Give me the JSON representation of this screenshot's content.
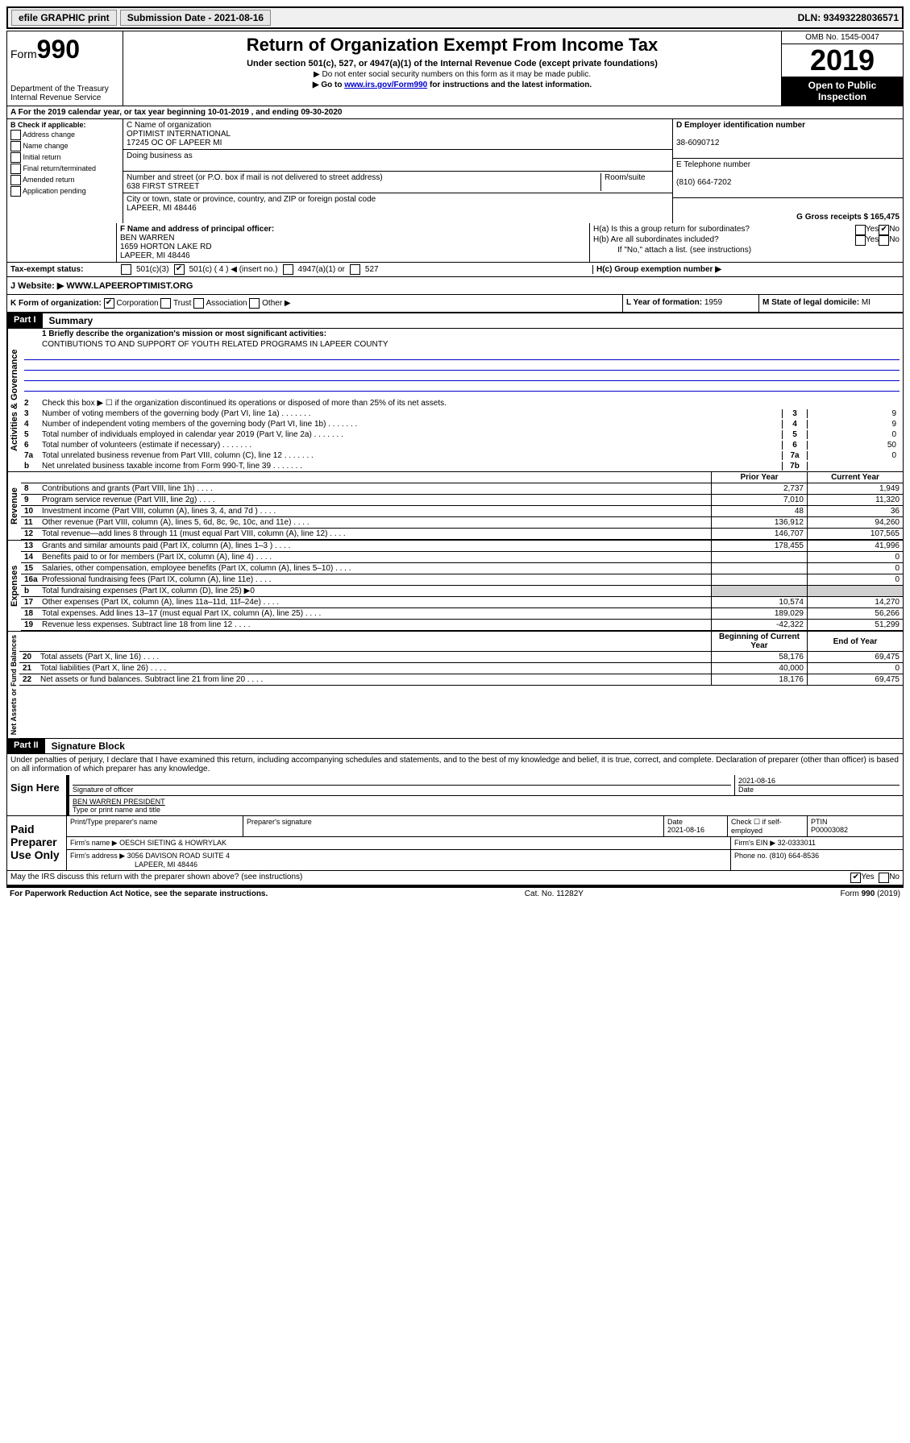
{
  "topbar": {
    "efile": "efile GRAPHIC print",
    "submission": "Submission Date - 2021-08-16",
    "dln": "DLN: 93493228036571"
  },
  "header": {
    "form_prefix": "Form",
    "form_number": "990",
    "dept": "Department of the Treasury\nInternal Revenue Service",
    "title": "Return of Organization Exempt From Income Tax",
    "subtitle": "Under section 501(c), 527, or 4947(a)(1) of the Internal Revenue Code (except private foundations)",
    "note1": "▶ Do not enter social security numbers on this form as it may be made public.",
    "note2_pre": "▶ Go to ",
    "note2_link": "www.irs.gov/Form990",
    "note2_post": " for instructions and the latest information.",
    "omb": "OMB No. 1545-0047",
    "year": "2019",
    "open": "Open to Public Inspection"
  },
  "line_a": "A For the 2019 calendar year, or tax year beginning 10-01-2019    , and ending 09-30-2020",
  "section_b": {
    "heading": "B Check if applicable:",
    "items": [
      "Address change",
      "Name change",
      "Initial return",
      "Final return/terminated",
      "Amended return",
      "Application pending"
    ]
  },
  "section_c": {
    "label": "C Name of organization",
    "name1": "OPTIMIST INTERNATIONAL",
    "name2": "17245 OC OF LAPEER MI",
    "dba_label": "Doing business as",
    "addr_label": "Number and street (or P.O. box if mail is not delivered to street address)",
    "room_label": "Room/suite",
    "addr": "638 FIRST STREET",
    "city_label": "City or town, state or province, country, and ZIP or foreign postal code",
    "city": "LAPEER, MI  48446"
  },
  "section_d": {
    "label": "D Employer identification number",
    "value": "38-6090712"
  },
  "section_e": {
    "label": "E Telephone number",
    "value": "(810) 664-7202"
  },
  "section_g": {
    "label": "G Gross receipts $ 165,475"
  },
  "section_f": {
    "label": "F  Name and address of principal officer:",
    "name": "BEN WARREN",
    "addr1": "1659 HORTON LAKE RD",
    "addr2": "LAPEER, MI  48446"
  },
  "section_h": {
    "ha": "H(a)  Is this a group return for subordinates?",
    "hb": "H(b)  Are all subordinates included?",
    "hb_note": "If \"No,\" attach a list. (see instructions)",
    "hc": "H(c)  Group exemption number ▶"
  },
  "row_i": {
    "label": "Tax-exempt status:",
    "opts": [
      "501(c)(3)",
      "501(c) ( 4 ) ◀ (insert no.)",
      "4947(a)(1) or",
      "527"
    ]
  },
  "row_j": {
    "label": "J    Website: ▶",
    "value": "WWW.LAPEEROPTIMIST.ORG"
  },
  "row_k": "K Form of organization:",
  "row_k_opts": [
    "Corporation",
    "Trust",
    "Association",
    "Other ▶"
  ],
  "row_l": {
    "label": "L Year of formation: ",
    "value": "1959"
  },
  "row_m": {
    "label": "M State of legal domicile: ",
    "value": "MI"
  },
  "part1": {
    "label": "Part I",
    "title": "Summary"
  },
  "mission": {
    "q": "1  Briefly describe the organization's mission or most significant activities:",
    "text": "CONTIBUTIONS TO AND SUPPORT OF YOUTH RELATED PROGRAMS IN LAPEER COUNTY"
  },
  "side_labels": {
    "gov": "Activities & Governance",
    "rev": "Revenue",
    "exp": "Expenses",
    "net": "Net Assets or Fund Balances"
  },
  "gov_lines": [
    {
      "n": "2",
      "t": "Check this box ▶ ☐  if the organization discontinued its operations or disposed of more than 25% of its net assets."
    },
    {
      "n": "3",
      "t": "Number of voting members of the governing body (Part VI, line 1a)",
      "box": "3",
      "v": "9"
    },
    {
      "n": "4",
      "t": "Number of independent voting members of the governing body (Part VI, line 1b)",
      "box": "4",
      "v": "9"
    },
    {
      "n": "5",
      "t": "Total number of individuals employed in calendar year 2019 (Part V, line 2a)",
      "box": "5",
      "v": "0"
    },
    {
      "n": "6",
      "t": "Total number of volunteers (estimate if necessary)",
      "box": "6",
      "v": "50"
    },
    {
      "n": "7a",
      "t": "Total unrelated business revenue from Part VIII, column (C), line 12",
      "box": "7a",
      "v": "0"
    },
    {
      "n": "b",
      "t": "Net unrelated business taxable income from Form 990-T, line 39",
      "box": "7b",
      "v": ""
    }
  ],
  "table_headers": {
    "prior": "Prior Year",
    "current": "Current Year",
    "begin": "Beginning of Current Year",
    "end": "End of Year"
  },
  "rev_lines": [
    {
      "n": "8",
      "t": "Contributions and grants (Part VIII, line 1h)",
      "p": "2,737",
      "c": "1,949"
    },
    {
      "n": "9",
      "t": "Program service revenue (Part VIII, line 2g)",
      "p": "7,010",
      "c": "11,320"
    },
    {
      "n": "10",
      "t": "Investment income (Part VIII, column (A), lines 3, 4, and 7d )",
      "p": "48",
      "c": "36"
    },
    {
      "n": "11",
      "t": "Other revenue (Part VIII, column (A), lines 5, 6d, 8c, 9c, 10c, and 11e)",
      "p": "136,912",
      "c": "94,260"
    },
    {
      "n": "12",
      "t": "Total revenue—add lines 8 through 11 (must equal Part VIII, column (A), line 12)",
      "p": "146,707",
      "c": "107,565"
    }
  ],
  "exp_lines": [
    {
      "n": "13",
      "t": "Grants and similar amounts paid (Part IX, column (A), lines 1–3 )",
      "p": "178,455",
      "c": "41,996"
    },
    {
      "n": "14",
      "t": "Benefits paid to or for members (Part IX, column (A), line 4)",
      "p": "",
      "c": "0"
    },
    {
      "n": "15",
      "t": "Salaries, other compensation, employee benefits (Part IX, column (A), lines 5–10)",
      "p": "",
      "c": "0"
    },
    {
      "n": "16a",
      "t": "Professional fundraising fees (Part IX, column (A), line 11e)",
      "p": "",
      "c": "0"
    },
    {
      "n": "b",
      "t": "Total fundraising expenses (Part IX, column (D), line 25) ▶0",
      "shade": true
    },
    {
      "n": "17",
      "t": "Other expenses (Part IX, column (A), lines 11a–11d, 11f–24e)",
      "p": "10,574",
      "c": "14,270"
    },
    {
      "n": "18",
      "t": "Total expenses. Add lines 13–17 (must equal Part IX, column (A), line 25)",
      "p": "189,029",
      "c": "56,266"
    },
    {
      "n": "19",
      "t": "Revenue less expenses. Subtract line 18 from line 12",
      "p": "-42,322",
      "c": "51,299"
    }
  ],
  "net_lines": [
    {
      "n": "20",
      "t": "Total assets (Part X, line 16)",
      "p": "58,176",
      "c": "69,475"
    },
    {
      "n": "21",
      "t": "Total liabilities (Part X, line 26)",
      "p": "40,000",
      "c": "0"
    },
    {
      "n": "22",
      "t": "Net assets or fund balances. Subtract line 21 from line 20",
      "p": "18,176",
      "c": "69,475"
    }
  ],
  "part2": {
    "label": "Part II",
    "title": "Signature Block"
  },
  "perjury": "Under penalties of perjury, I declare that I have examined this return, including accompanying schedules and statements, and to the best of my knowledge and belief, it is true, correct, and complete. Declaration of preparer (other than officer) is based on all information of which preparer has any knowledge.",
  "sign": {
    "here": "Sign Here",
    "sig_label": "Signature of officer",
    "date": "2021-08-16",
    "date_label": "Date",
    "name": "BEN WARREN  PRESIDENT",
    "name_label": "Type or print name and title"
  },
  "paid": {
    "label": "Paid Preparer Use Only",
    "h1": "Print/Type preparer's name",
    "h2": "Preparer's signature",
    "h3": "Date",
    "h3v": "2021-08-16",
    "h4": "Check ☐ if self-employed",
    "h5": "PTIN",
    "h5v": "P00003082",
    "firm_name_l": "Firm's name    ▶",
    "firm_name": "OESCH SIETING & HOWRYLAK",
    "firm_ein_l": "Firm's EIN ▶",
    "firm_ein": "32-0333011",
    "firm_addr_l": "Firm's address ▶",
    "firm_addr1": "3056 DAVISON ROAD SUITE 4",
    "firm_addr2": "LAPEER, MI  48446",
    "phone_l": "Phone no.",
    "phone": "(810) 664-8536"
  },
  "discuss": "May the IRS discuss this return with the preparer shown above? (see instructions)",
  "footer": {
    "left": "For Paperwork Reduction Act Notice, see the separate instructions.",
    "mid": "Cat. No. 11282Y",
    "right": "Form 990 (2019)"
  }
}
